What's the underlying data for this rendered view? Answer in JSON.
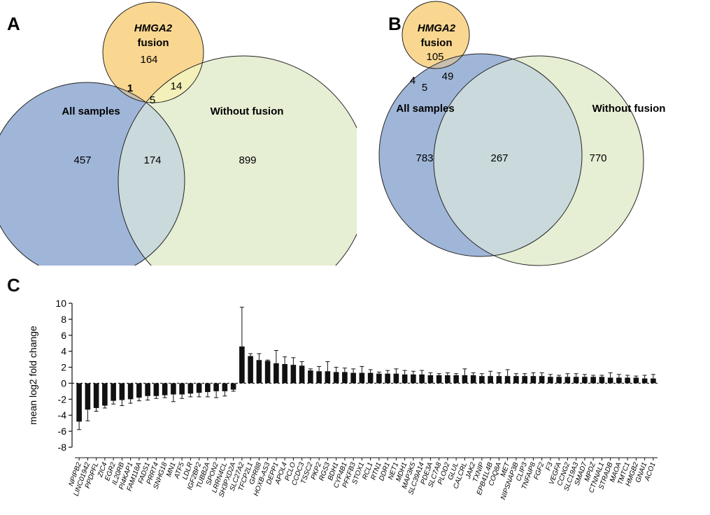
{
  "panels": {
    "A": "A",
    "B": "B",
    "C": "C"
  },
  "venn_a": {
    "labels": {
      "hmga2": "HMGA2",
      "fusion": "fusion",
      "all": "All samples",
      "without": "Without fusion"
    },
    "counts": {
      "hmga2_only": "164",
      "all_hmga2": "1",
      "hmga2_without": "14",
      "all_three": "5",
      "all_only": "457",
      "all_without": "174",
      "without_only": "899"
    },
    "colors": {
      "all": "#a0b6d8",
      "hmga2": "#f9d791",
      "without": "#e6eed3",
      "all_hmga2": "#c9bfae",
      "all_without": "#c9d9dc",
      "hmga2_without": "#f3f0b9",
      "all_three": "#d8d6c4"
    }
  },
  "venn_b": {
    "labels": {
      "hmga2": "HMGA2",
      "fusion": "fusion",
      "all": "All samples",
      "without": "Without fusion"
    },
    "counts": {
      "hmga2_only": "105",
      "all_hmga2": "4",
      "hmga2_without": "49",
      "all_three": "5",
      "all_only": "783",
      "all_without": "267",
      "without_only": "770"
    },
    "colors": {
      "all": "#a0b6d8",
      "hmga2": "#f9d791",
      "without": "#e6eed3",
      "all_hmga2": "#c9bfae",
      "all_without": "#c9d9dc",
      "hmga2_without": "#f3f0b9",
      "all_three": "#d8d6c4"
    }
  },
  "chart_data": {
    "type": "bar",
    "title": "",
    "xlabel": "",
    "ylabel": "mean log2 fold change",
    "ylim": [
      -8,
      10
    ],
    "yticks": [
      10,
      8,
      6,
      4,
      2,
      0,
      -2,
      -4,
      -6,
      -8
    ],
    "bar_color": "#111111",
    "categories": [
      "NPIPB2",
      "LINC01942",
      "PPDPFL",
      "ZIC4",
      "EGR2",
      "IL20RB",
      "PI4KAP1",
      "FAM118A",
      "FADS1",
      "PRRT4",
      "SNHG18",
      "MN1",
      "ATF5",
      "LDLR",
      "IGF2BP2",
      "TUBB2A",
      "SPON2",
      "LRRN4CL",
      "SH3PXD2A",
      "SLC27A2",
      "TFCP2L1",
      "GPR88",
      "HOXB-AS3",
      "DEPP1",
      "APOL4",
      "PCLO",
      "CCDC3",
      "TSSC2",
      "PKP2",
      "RGS3",
      "BDH1",
      "CYP4B1",
      "PFKFB3",
      "STOX1",
      "RCL1",
      "RTN1",
      "DDR1",
      "NET1",
      "MDH1",
      "MAP3K5",
      "SLC39A14",
      "PDE3A",
      "SLC7A8",
      "PLOD2",
      "GLUL",
      "CALCRL",
      "JAK2",
      "TXNIP",
      "EPB41L4B",
      "COQ8A",
      "MET",
      "NIPSNAP3B",
      "CLIP3",
      "TNFAIP8",
      "FGF2",
      "F3",
      "VEGFA",
      "CCNG2",
      "SLC19A3",
      "SMAD7",
      "MPDZ",
      "CTNNAL1",
      "STRADB",
      "MAOA",
      "TMTC1",
      "HMGB2",
      "GNAI1",
      "ACO1"
    ],
    "values": [
      -4.8,
      -3.3,
      -3.1,
      -2.8,
      -2.2,
      -2.1,
      -2.0,
      -1.8,
      -1.6,
      -1.6,
      -1.5,
      -1.4,
      -1.4,
      -1.3,
      -1.2,
      -1.1,
      -1.0,
      -1.0,
      -0.8,
      4.6,
      3.4,
      2.9,
      2.8,
      2.5,
      2.4,
      2.3,
      2.2,
      1.6,
      1.5,
      1.5,
      1.4,
      1.4,
      1.3,
      1.3,
      1.3,
      1.2,
      1.2,
      1.2,
      1.1,
      1.1,
      1.1,
      1.0,
      1.0,
      1.0,
      1.0,
      1.0,
      1.0,
      0.9,
      0.9,
      0.9,
      0.9,
      0.9,
      0.9,
      0.9,
      0.9,
      0.8,
      0.8,
      0.8,
      0.8,
      0.8,
      0.8,
      0.8,
      0.7,
      0.7,
      0.7,
      0.7,
      0.6,
      0.6
    ],
    "errors": [
      1.0,
      1.4,
      0.4,
      0.3,
      0.4,
      0.7,
      0.5,
      0.4,
      0.5,
      0.3,
      0.3,
      0.9,
      0.5,
      0.4,
      0.5,
      0.6,
      0.8,
      0.6,
      0.2,
      4.9,
      0.3,
      0.8,
      0.1,
      1.6,
      0.9,
      0.9,
      0.5,
      0.2,
      0.6,
      1.2,
      0.6,
      0.5,
      0.5,
      0.8,
      0.4,
      0.2,
      0.4,
      0.6,
      0.5,
      0.4,
      0.5,
      0.3,
      0.2,
      0.3,
      0.2,
      0.8,
      0.3,
      0.3,
      0.6,
      0.4,
      0.8,
      0.3,
      0.3,
      0.4,
      0.4,
      0.3,
      0.2,
      0.4,
      0.4,
      0.3,
      0.2,
      0.2,
      0.6,
      0.4,
      0.3,
      0.2,
      0.4,
      0.5
    ]
  }
}
